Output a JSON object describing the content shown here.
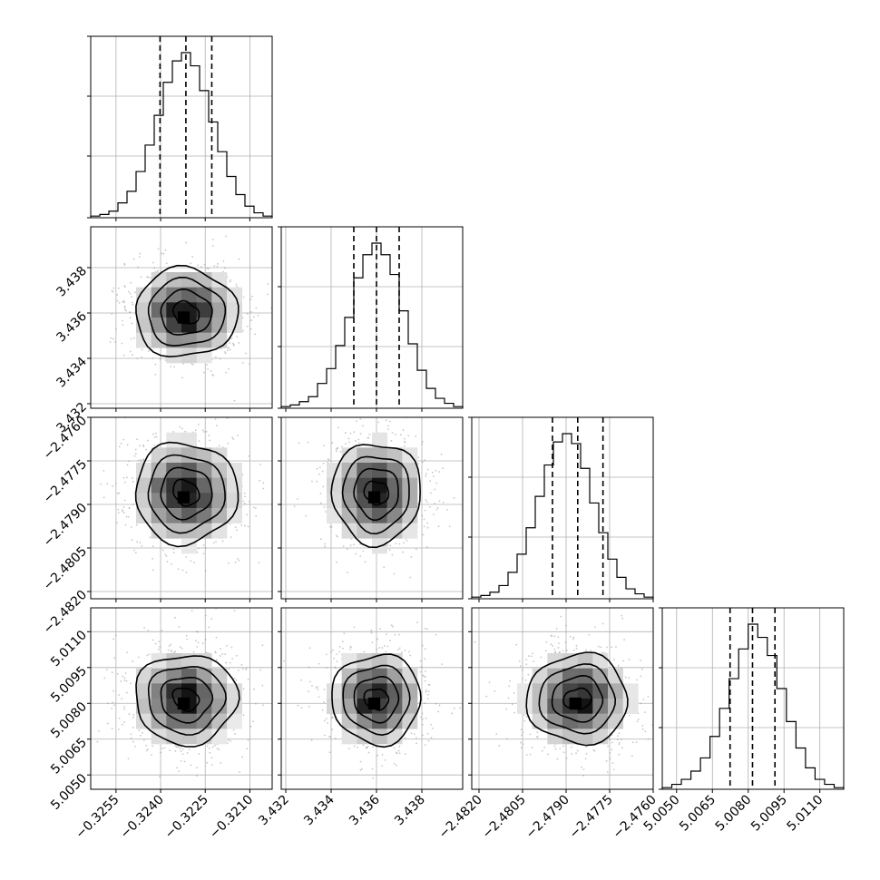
{
  "chart_data": {
    "type": "corner",
    "parameters": [
      {
        "ticks": [
          "−0.3255",
          "−0.3240",
          "−0.3225",
          "−0.3210"
        ],
        "tick_values": [
          -0.3255,
          -0.324,
          -0.3225,
          -0.321
        ],
        "range": [
          -0.32635,
          -0.32025
        ],
        "mean": -0.32315,
        "sigma": 0.00086
      },
      {
        "ticks": [
          "3.432",
          "3.434",
          "3.436",
          "3.438"
        ],
        "tick_values": [
          3.432,
          3.434,
          3.436,
          3.438
        ],
        "range": [
          3.4318,
          3.4398
        ],
        "mean": 3.436,
        "sigma": 0.00098
      },
      {
        "ticks": [
          "−2.4820",
          "−2.4805",
          "−2.4790",
          "−2.4775",
          "−2.4760"
        ],
        "tick_values": [
          -2.482,
          -2.4805,
          -2.479,
          -2.4775,
          -2.476
        ],
        "range": [
          -2.48225,
          -2.476
        ],
        "mean": -2.4786,
        "sigma": 0.00087
      },
      {
        "ticks": [
          "5.0050",
          "5.0065",
          "5.0080",
          "5.0095",
          "5.0110"
        ],
        "tick_values": [
          5.005,
          5.0065,
          5.008,
          5.0095,
          5.011
        ],
        "range": [
          5.0044,
          5.012
        ],
        "mean": 5.00818,
        "sigma": 0.00094
      }
    ],
    "histograms": [
      {
        "param": 0,
        "counts": [
          0.01,
          0.02,
          0.04,
          0.09,
          0.16,
          0.28,
          0.44,
          0.62,
          0.82,
          0.95,
          1.0,
          0.92,
          0.77,
          0.58,
          0.4,
          0.25,
          0.14,
          0.07,
          0.03,
          0.01
        ],
        "quantiles": [
          -0.32402,
          -0.32315,
          -0.32228
        ]
      },
      {
        "param": 1,
        "counts": [
          0.01,
          0.02,
          0.04,
          0.07,
          0.15,
          0.24,
          0.38,
          0.55,
          0.79,
          0.93,
          1.0,
          0.93,
          0.81,
          0.59,
          0.39,
          0.23,
          0.12,
          0.06,
          0.03,
          0.01
        ],
        "quantiles": [
          3.435,
          3.436,
          3.437
        ]
      },
      {
        "param": 2,
        "counts": [
          0.01,
          0.02,
          0.04,
          0.08,
          0.16,
          0.27,
          0.43,
          0.62,
          0.81,
          0.95,
          1.0,
          0.94,
          0.79,
          0.58,
          0.4,
          0.24,
          0.13,
          0.06,
          0.03,
          0.01
        ],
        "quantiles": [
          -2.47947,
          -2.4786,
          -2.47773
        ]
      },
      {
        "param": 3,
        "counts": [
          0.01,
          0.03,
          0.06,
          0.11,
          0.19,
          0.32,
          0.49,
          0.67,
          0.85,
          1.0,
          0.92,
          0.81,
          0.61,
          0.41,
          0.25,
          0.13,
          0.06,
          0.03,
          0.01
        ],
        "quantiles": [
          5.00724,
          5.00818,
          5.00912
        ]
      }
    ],
    "pairs": [
      [
        1,
        0
      ],
      [
        2,
        0
      ],
      [
        2,
        1
      ],
      [
        3,
        0
      ],
      [
        3,
        1
      ],
      [
        3,
        2
      ]
    ],
    "contour_levels": [
      0.5,
      1.0,
      1.5,
      2.0
    ],
    "grid": true,
    "colors": {
      "scatter": "#999999",
      "contour": "#000000",
      "density_dark": "#000000",
      "density_light": "#ffffff"
    }
  }
}
